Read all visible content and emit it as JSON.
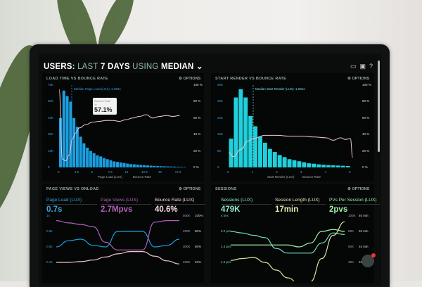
{
  "header": {
    "prefix": "USERS:",
    "range_a": "LAST",
    "range_b": "7 DAYS",
    "using": "USING",
    "stat": "MEDIAN",
    "icons": [
      "monitor-icon",
      "image-icon",
      "help-icon"
    ]
  },
  "options_label": "OPTIONS",
  "panels": {
    "load_time": {
      "title": "LOAD TIME VS BOUNCE RATE",
      "median": "Median Page Load (LUX): 2.056s",
      "tooltip_label": "Bounce Rate",
      "tooltip_sub": "%",
      "tooltip_value": "57.1%",
      "legend": [
        "Page Load (LUX)",
        "Bounce Rate"
      ],
      "yleft": [
        "75K",
        "60K",
        "45K",
        "30K",
        "15K",
        "0"
      ],
      "yright": [
        "100 %",
        "80 %",
        "60 %",
        "40 %",
        "20 %",
        "0 %"
      ],
      "xticks": [
        "0",
        "2.5",
        "5",
        "7.5",
        "10",
        "12.5",
        "15",
        "17.5"
      ]
    },
    "start_render": {
      "title": "START RENDER VS BOUNCE RATE",
      "median": "Median Start Render (LUX): 1.031s",
      "legend": [
        "Start Render (LUX)",
        "Bounce Rate"
      ],
      "yleft": [
        "40K",
        "32K",
        "24K",
        "16K",
        "8K",
        "0"
      ],
      "yright": [
        "100 %",
        "80 %",
        "60 %",
        "40 %",
        "20 %",
        "0 %"
      ],
      "xticks": [
        "0",
        "1",
        "2",
        "3",
        "4",
        "5"
      ]
    },
    "page_views": {
      "title": "PAGE VIEWS VS ONLOAD",
      "kpis": [
        {
          "label": "Page Load (LUX)",
          "value": "0.7s",
          "color": "#3aa3e0"
        },
        {
          "label": "Page Views (LUX)",
          "value": "2.7Mpvs",
          "color": "#b060b8"
        },
        {
          "label": "Bounce Rate (LUX)",
          "value": "40.6%",
          "color": "#f4d8e0"
        }
      ],
      "yleft": [
        "1s",
        "0.8s",
        "0.6s",
        "0.4s"
      ],
      "yright1": [
        "500K",
        "400K",
        "300K",
        "200K"
      ],
      "yright2": [
        "100%",
        "80%",
        "60%",
        "40%"
      ]
    },
    "sessions": {
      "title": "SESSIONS",
      "kpis": [
        {
          "label": "Sessions (LUX)",
          "value": "479K",
          "color": "#8fe8c8"
        },
        {
          "label": "Session Length (LUX)",
          "value": "17min",
          "color": "#e8eab0"
        },
        {
          "label": "PVs Per Session (LUX)",
          "value": "2pvs",
          "color": "#9ef0a8"
        }
      ],
      "yleft": [
        "4 pvs",
        "3.2 pvs",
        "2.4 pvs",
        "1.6 pvs"
      ],
      "yright1": [
        "100K",
        "80K",
        "60K",
        "40K"
      ],
      "yright2": [
        "40 min",
        "32 min",
        "24 min",
        "16 min"
      ]
    }
  },
  "notification_count": "1",
  "colors": {
    "blue": "#1a9ee0",
    "cyan": "#20d0dc",
    "pink": "#f0c8d0",
    "purple": "#b060b8",
    "teal": "#70e0b8",
    "yellow": "#e0e0a0"
  },
  "chart_data": [
    {
      "type": "bar",
      "title": "LOAD TIME VS BOUNCE RATE",
      "x_start": 0,
      "x_step": 0.5,
      "ylim": [
        0,
        75000
      ],
      "y2lim": [
        0,
        100
      ],
      "series": [
        {
          "name": "Page Load (LUX)",
          "type": "bar",
          "values": [
            45000,
            70000,
            65000,
            60000,
            45000,
            37000,
            28000,
            22000,
            18000,
            15000,
            13000,
            11000,
            10000,
            8500,
            7500,
            6500,
            5500,
            5000,
            4500,
            4000,
            3500,
            3000,
            2800,
            2500,
            2200,
            2000,
            1800,
            1600,
            1400,
            1200,
            1100,
            1000,
            900,
            800,
            700,
            600,
            500,
            400
          ]
        },
        {
          "name": "Bounce Rate",
          "type": "line",
          "x": [
            0,
            0.5,
            1,
            1.5,
            2,
            2.5,
            3,
            4,
            5,
            6,
            7,
            8,
            9,
            10,
            11,
            12,
            13,
            14,
            15,
            16,
            17,
            18
          ],
          "values": [
            95,
            10,
            8,
            15,
            35,
            42,
            48,
            52,
            55,
            56,
            57,
            57,
            56,
            58,
            60,
            62,
            64,
            60,
            62,
            63,
            62,
            63
          ]
        }
      ]
    },
    {
      "type": "bar",
      "title": "START RENDER VS BOUNCE RATE",
      "x_start": 0.1,
      "x_step": 0.2,
      "ylim": [
        0,
        40000
      ],
      "y2lim": [
        0,
        100
      ],
      "series": [
        {
          "name": "Start Render (LUX)",
          "type": "bar",
          "values": [
            14000,
            34000,
            38000,
            34000,
            25000,
            20000,
            15000,
            12000,
            9000,
            7500,
            6000,
            5000,
            4000,
            3500,
            3000,
            2500,
            2000,
            1800,
            1500,
            1300,
            1100,
            1000,
            900,
            800,
            700
          ]
        },
        {
          "name": "Bounce Rate",
          "type": "line",
          "x": [
            0,
            0.2,
            0.5,
            0.8,
            1,
            1.5,
            2,
            2.5,
            3,
            3.5,
            4,
            4.3,
            4.6,
            4.8,
            5,
            5.1
          ],
          "values": [
            18,
            13,
            22,
            32,
            35,
            39,
            39,
            38,
            38,
            37,
            36,
            33,
            36,
            34,
            35,
            12
          ]
        }
      ]
    },
    {
      "type": "line",
      "title": "PAGE VIEWS VS ONLOAD",
      "x": [
        0,
        1,
        2,
        3,
        4,
        5,
        6,
        7,
        8,
        9,
        10
      ],
      "series": [
        {
          "name": "Page Load (LUX)",
          "axis": "s",
          "ylim": [
            0.4,
            1
          ],
          "values": [
            0.6,
            0.68,
            0.7,
            0.62,
            0.6,
            0.8,
            0.8,
            0.8,
            0.6,
            0.62,
            0.7
          ]
        },
        {
          "name": "Page Views (LUX)",
          "axis": "K",
          "ylim": [
            200,
            500
          ],
          "values": [
            470,
            455,
            445,
            430,
            330,
            280,
            280,
            280,
            460,
            470,
            470
          ]
        },
        {
          "name": "Bounce Rate (LUX)",
          "axis": "%",
          "ylim": [
            40,
            100
          ],
          "values": [
            40,
            40,
            41,
            43,
            47,
            51,
            54,
            54,
            48,
            42,
            38
          ]
        }
      ]
    },
    {
      "type": "line",
      "title": "SESSIONS",
      "x": [
        0,
        1,
        2,
        3,
        4,
        5,
        6,
        7,
        8,
        9,
        10
      ],
      "series": [
        {
          "name": "Sessions (LUX)",
          "axis": "K",
          "ylim": [
            40,
            100
          ],
          "values": [
            80,
            78,
            75,
            72,
            58,
            52,
            52,
            52,
            65,
            78,
            76
          ]
        },
        {
          "name": "PVs Per Session (LUX)",
          "axis": "pvs",
          "ylim": [
            1.6,
            4
          ],
          "values": [
            2.5,
            2.5,
            2.5,
            2.5,
            2.5,
            2.5,
            2.4,
            2.6,
            3.2,
            3.3,
            3.2
          ]
        },
        {
          "name": "Session Length (LUX)",
          "axis": "min",
          "ylim": [
            16,
            40
          ],
          "values": [
            17,
            18,
            18.5,
            16,
            12,
            8,
            5,
            6,
            18,
            30,
            37
          ]
        }
      ]
    }
  ]
}
